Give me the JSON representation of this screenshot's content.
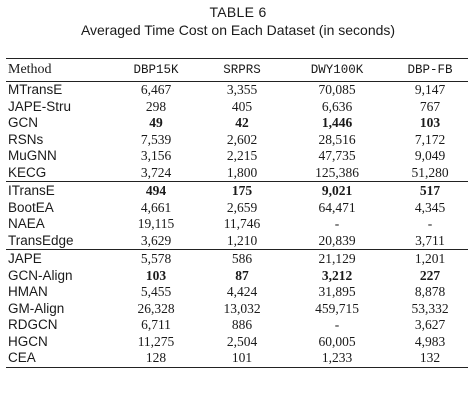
{
  "caption": {
    "label": "TABLE 6",
    "title": "Averaged Time Cost on Each Dataset (in seconds)"
  },
  "table": {
    "columns": [
      "Method",
      "DBP15K",
      "SRPRS",
      "DWY100K",
      "DBP-FB"
    ],
    "groups": [
      {
        "rows": [
          {
            "method": "MTransE",
            "values": [
              "6,467",
              "3,355",
              "70,085",
              "9,147"
            ],
            "bold": []
          },
          {
            "method": "JAPE-Stru",
            "values": [
              "298",
              "405",
              "6,636",
              "767"
            ],
            "bold": []
          },
          {
            "method": "GCN",
            "values": [
              "49",
              "42",
              "1,446",
              "103"
            ],
            "bold": [
              0,
              1,
              2,
              3
            ]
          },
          {
            "method": "RSNs",
            "values": [
              "7,539",
              "2,602",
              "28,516",
              "7,172"
            ],
            "bold": []
          },
          {
            "method": "MuGNN",
            "values": [
              "3,156",
              "2,215",
              "47,735",
              "9,049"
            ],
            "bold": []
          },
          {
            "method": "KECG",
            "values": [
              "3,724",
              "1,800",
              "125,386",
              "51,280"
            ],
            "bold": []
          }
        ]
      },
      {
        "rows": [
          {
            "method": "ITransE",
            "values": [
              "494",
              "175",
              "9,021",
              "517"
            ],
            "bold": [
              0,
              1,
              2,
              3
            ]
          },
          {
            "method": "BootEA",
            "values": [
              "4,661",
              "2,659",
              "64,471",
              "4,345"
            ],
            "bold": []
          },
          {
            "method": "NAEA",
            "values": [
              "19,115",
              "11,746",
              "-",
              "-"
            ],
            "bold": []
          },
          {
            "method": "TransEdge",
            "values": [
              "3,629",
              "1,210",
              "20,839",
              "3,711"
            ],
            "bold": []
          }
        ]
      },
      {
        "rows": [
          {
            "method": "JAPE",
            "values": [
              "5,578",
              "586",
              "21,129",
              "1,201"
            ],
            "bold": []
          },
          {
            "method": "GCN-Align",
            "values": [
              "103",
              "87",
              "3,212",
              "227"
            ],
            "bold": [
              0,
              1,
              2,
              3
            ]
          },
          {
            "method": "HMAN",
            "values": [
              "5,455",
              "4,424",
              "31,895",
              "8,878"
            ],
            "bold": []
          },
          {
            "method": "GM-Align",
            "values": [
              "26,328",
              "13,032",
              "459,715",
              "53,332"
            ],
            "bold": []
          },
          {
            "method": "RDGCN",
            "values": [
              "6,711",
              "886",
              "-",
              "3,627"
            ],
            "bold": []
          },
          {
            "method": "HGCN",
            "values": [
              "11,275",
              "2,504",
              "60,005",
              "4,983"
            ],
            "bold": []
          },
          {
            "method": "CEA",
            "values": [
              "128",
              "101",
              "1,233",
              "132"
            ],
            "bold": []
          }
        ]
      }
    ]
  }
}
